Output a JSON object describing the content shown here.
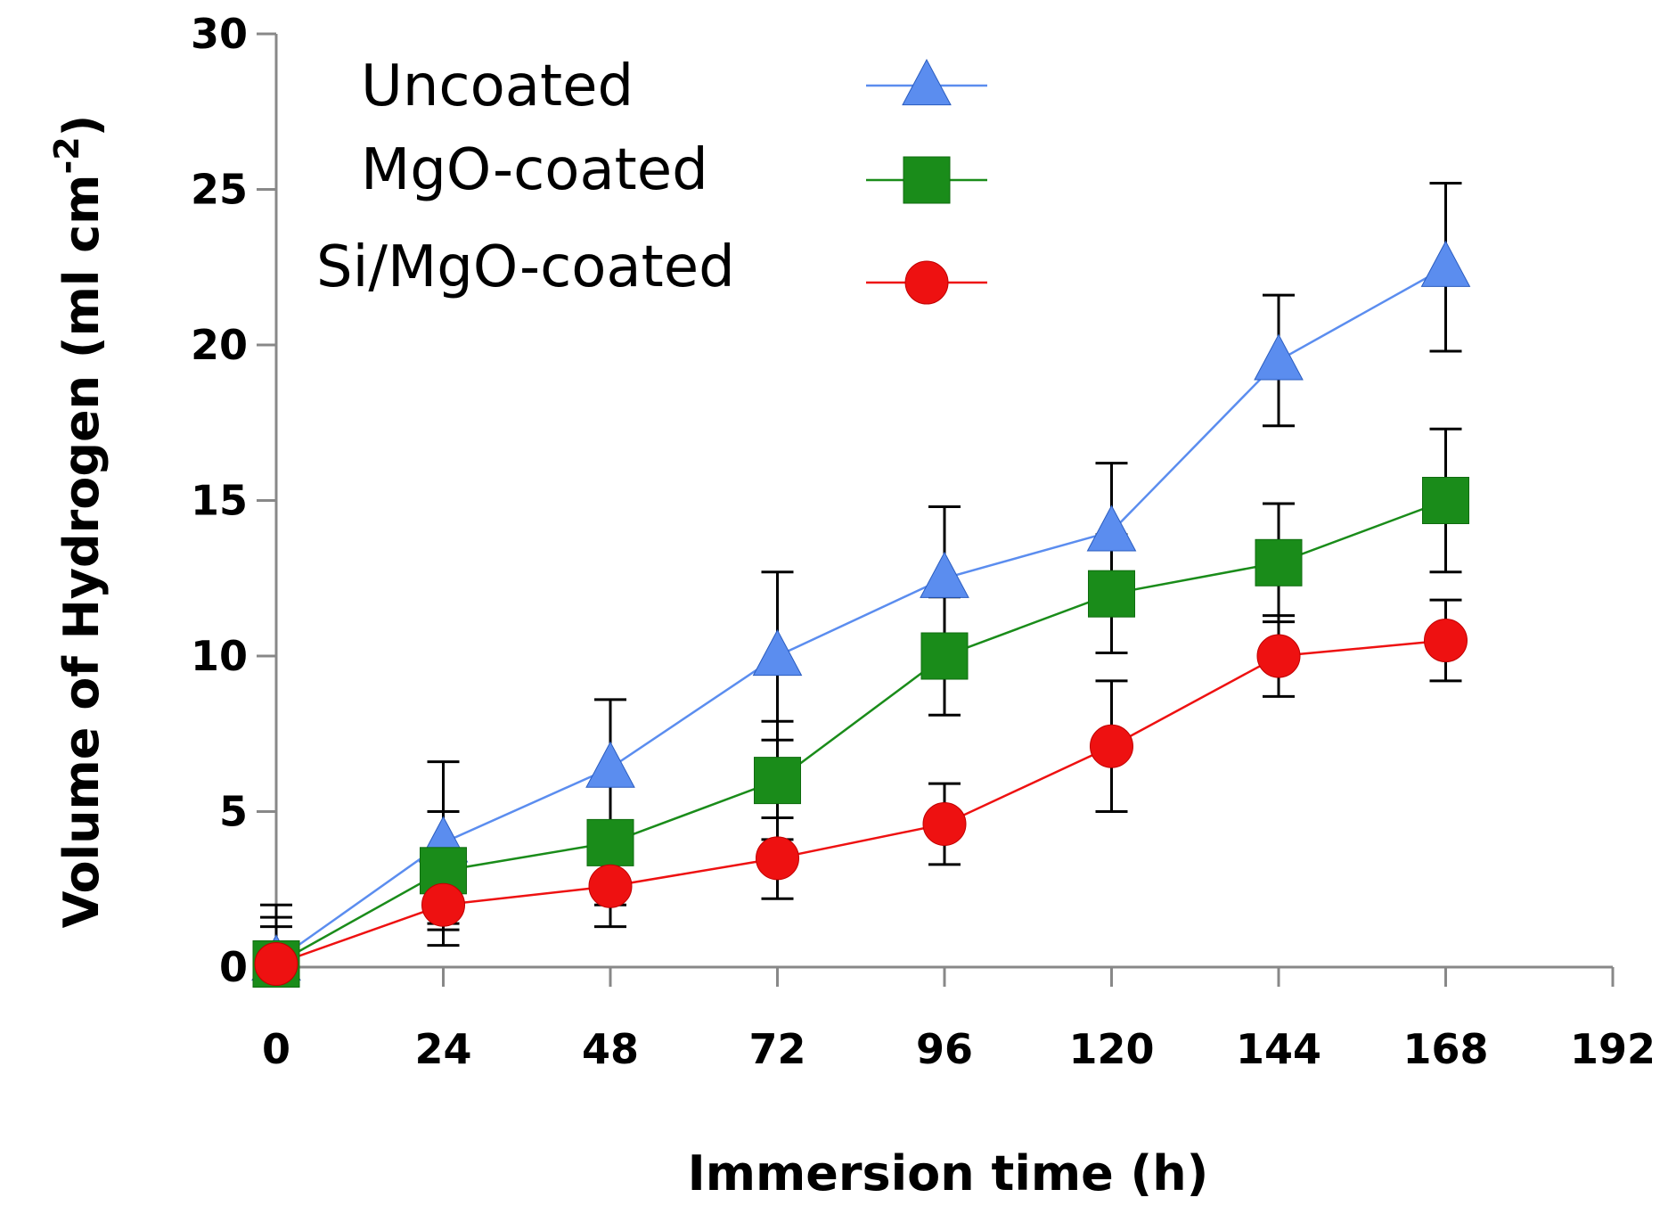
{
  "chart_data": {
    "type": "line",
    "title": "",
    "xlabel": "Immersion time (h)",
    "ylabel_main": "Volume of Hydrogen (ml cm",
    "ylabel_sup": "-2",
    "ylabel_close": ")",
    "x": [
      0,
      24,
      48,
      72,
      96,
      120,
      144,
      168
    ],
    "xlim": [
      0,
      192
    ],
    "ylim": [
      0,
      30
    ],
    "x_ticks": [
      0,
      24,
      48,
      72,
      96,
      120,
      144,
      168,
      192
    ],
    "y_ticks": [
      0,
      5,
      10,
      15,
      20,
      25,
      30
    ],
    "grid": false,
    "legend_position": "top-left",
    "series": [
      {
        "name": "Uncoated",
        "color": "#5b8def",
        "marker": "triangle",
        "values": [
          0.2,
          4.0,
          6.4,
          10.0,
          12.5,
          14.0,
          19.5,
          22.5
        ],
        "errors": [
          1.8,
          2.6,
          2.2,
          2.7,
          2.3,
          2.2,
          2.1,
          2.7
        ]
      },
      {
        "name": "MgO-coated",
        "color": "#1a8c1a",
        "marker": "square",
        "values": [
          0.1,
          3.1,
          4.0,
          6.0,
          10.0,
          12.0,
          13.0,
          15.0
        ],
        "errors": [
          1.5,
          1.9,
          2.0,
          1.9,
          1.9,
          1.9,
          1.9,
          2.3
        ]
      },
      {
        "name": "Si/MgO-coated",
        "color": "#ee1111",
        "marker": "circle",
        "values": [
          0.1,
          2.0,
          2.6,
          3.5,
          4.6,
          7.1,
          10.0,
          10.5
        ],
        "errors": [
          1.2,
          1.3,
          1.3,
          1.3,
          1.3,
          2.1,
          1.3,
          1.3
        ]
      }
    ]
  }
}
